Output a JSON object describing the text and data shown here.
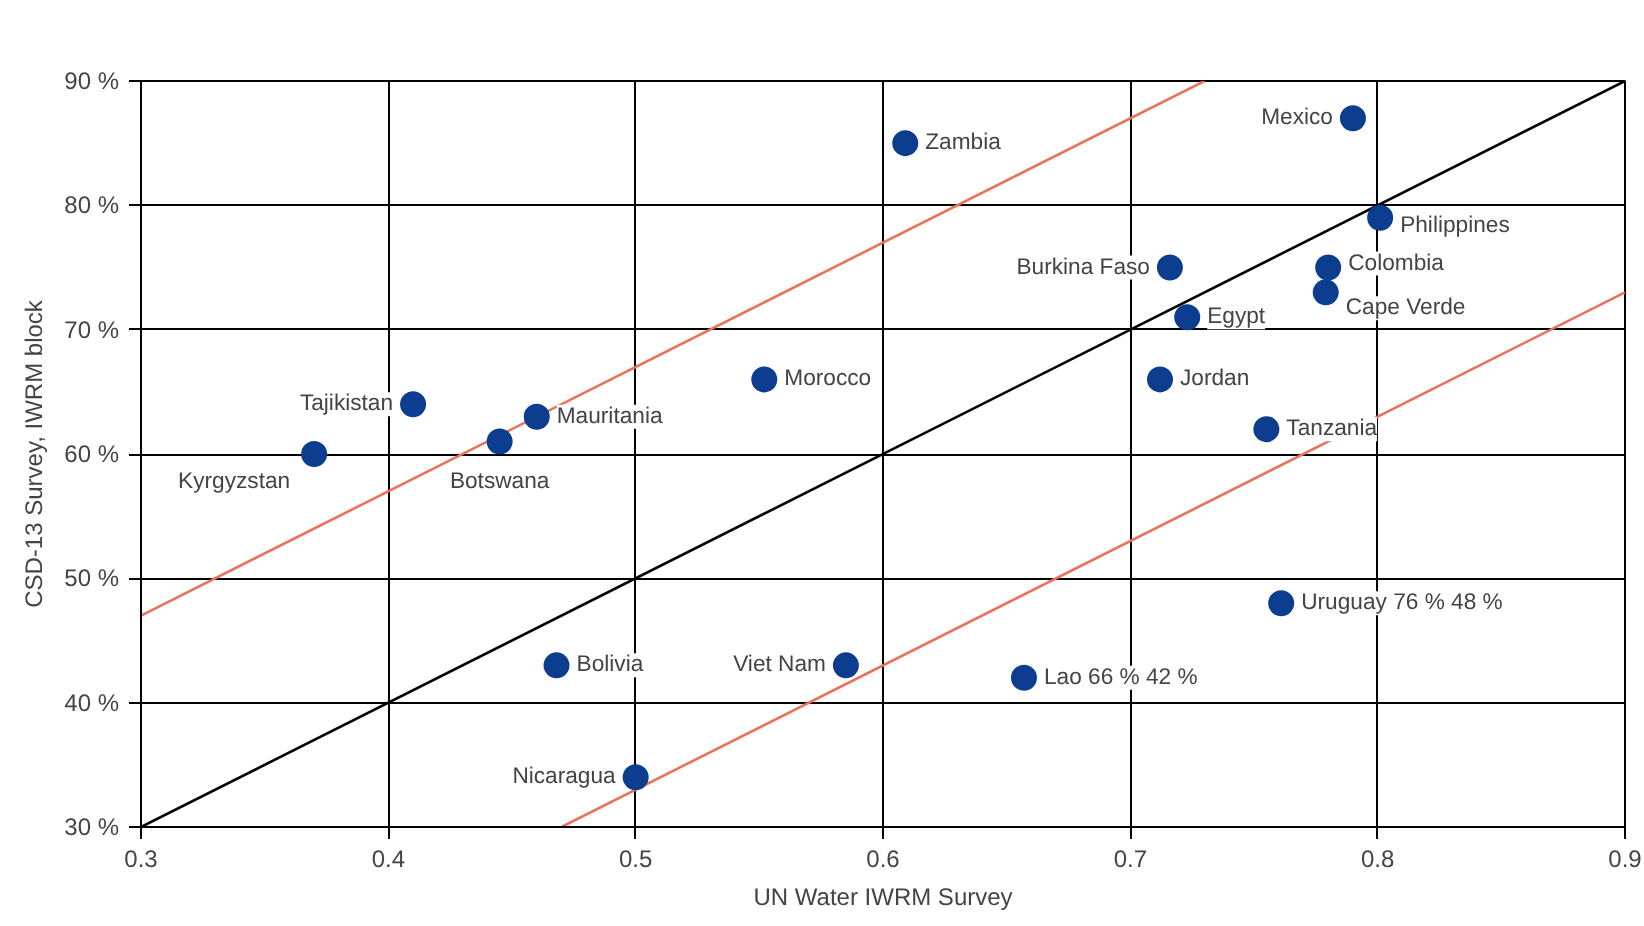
{
  "chart_data": {
    "type": "scatter",
    "xlabel": "UN Water IWRM Survey",
    "ylabel": "CSD-13 Survey, IWRM block",
    "xlim": [
      0.3,
      0.9
    ],
    "xticks": [
      0.3,
      0.4,
      0.5,
      0.6,
      0.7,
      0.8,
      0.9
    ],
    "ylim": [
      30,
      90
    ],
    "yticks": [
      {
        "value": 30,
        "label": "30 %"
      },
      {
        "value": 40,
        "label": "40 %"
      },
      {
        "value": 50,
        "label": "50 %"
      },
      {
        "value": 60,
        "label": "60 %"
      },
      {
        "value": 70,
        "label": "70 %"
      },
      {
        "value": 80,
        "label": "80 %"
      },
      {
        "value": 90,
        "label": "90 %"
      }
    ],
    "grid": true,
    "marker": "circle",
    "series": [
      {
        "color": "#0d3d8f",
        "x": [
          0.37,
          0.41,
          0.445,
          0.46,
          0.552,
          0.609,
          0.468,
          0.585,
          0.5,
          0.657,
          0.761,
          0.755,
          0.712,
          0.723,
          0.716,
          0.779,
          0.78,
          0.801,
          0.79
        ],
        "values": [
          60,
          64,
          61,
          63,
          66,
          85,
          43,
          43,
          34,
          42,
          48,
          62,
          66,
          71,
          75,
          73,
          75,
          79,
          87
        ]
      },
      {
        "type": "line",
        "marker": "none",
        "color": "#000000",
        "x": [
          0.3,
          0.9
        ],
        "values": [
          30,
          90
        ]
      },
      {
        "type": "line",
        "marker": "none",
        "color": "#e8735a",
        "x": [
          0.3,
          0.73
        ],
        "values": [
          47,
          90
        ]
      },
      {
        "type": "line",
        "marker": "none",
        "color": "#e8735a",
        "x": [
          0.47,
          0.9
        ],
        "values": [
          30,
          73
        ]
      }
    ],
    "annotations": [
      {
        "text": "Kyrgyzstan",
        "x": 0.37,
        "y": 60
      },
      {
        "text": "Tajikistan",
        "x": 0.41,
        "y": 64
      },
      {
        "text": "Botswana",
        "x": 0.445,
        "y": 61
      },
      {
        "text": "Mauritania",
        "x": 0.46,
        "y": 63
      },
      {
        "text": "Morocco",
        "x": 0.552,
        "y": 66
      },
      {
        "text": "Zambia",
        "x": 0.609,
        "y": 85
      },
      {
        "text": "Bolivia",
        "x": 0.468,
        "y": 43
      },
      {
        "text": "Viet Nam",
        "x": 0.585,
        "y": 43
      },
      {
        "text": "Nicaragua",
        "x": 0.5,
        "y": 34
      },
      {
        "text": "Lao 66 % 42 %",
        "x": 0.657,
        "y": 42
      },
      {
        "text": "Uruguay 76 % 48 %",
        "x": 0.761,
        "y": 48
      },
      {
        "text": "Tanzania",
        "x": 0.755,
        "y": 62
      },
      {
        "text": "Jordan",
        "x": 0.712,
        "y": 66
      },
      {
        "text": "Egypt",
        "x": 0.723,
        "y": 71
      },
      {
        "text": "Burkina Faso",
        "x": 0.716,
        "y": 75
      },
      {
        "text": "Cape Verde",
        "x": 0.779,
        "y": 73
      },
      {
        "text": "Colombia",
        "x": 0.78,
        "y": 75
      },
      {
        "text": "Philippines",
        "x": 0.801,
        "y": 79
      },
      {
        "text": "Mexico",
        "x": 0.79,
        "y": 87
      }
    ]
  }
}
